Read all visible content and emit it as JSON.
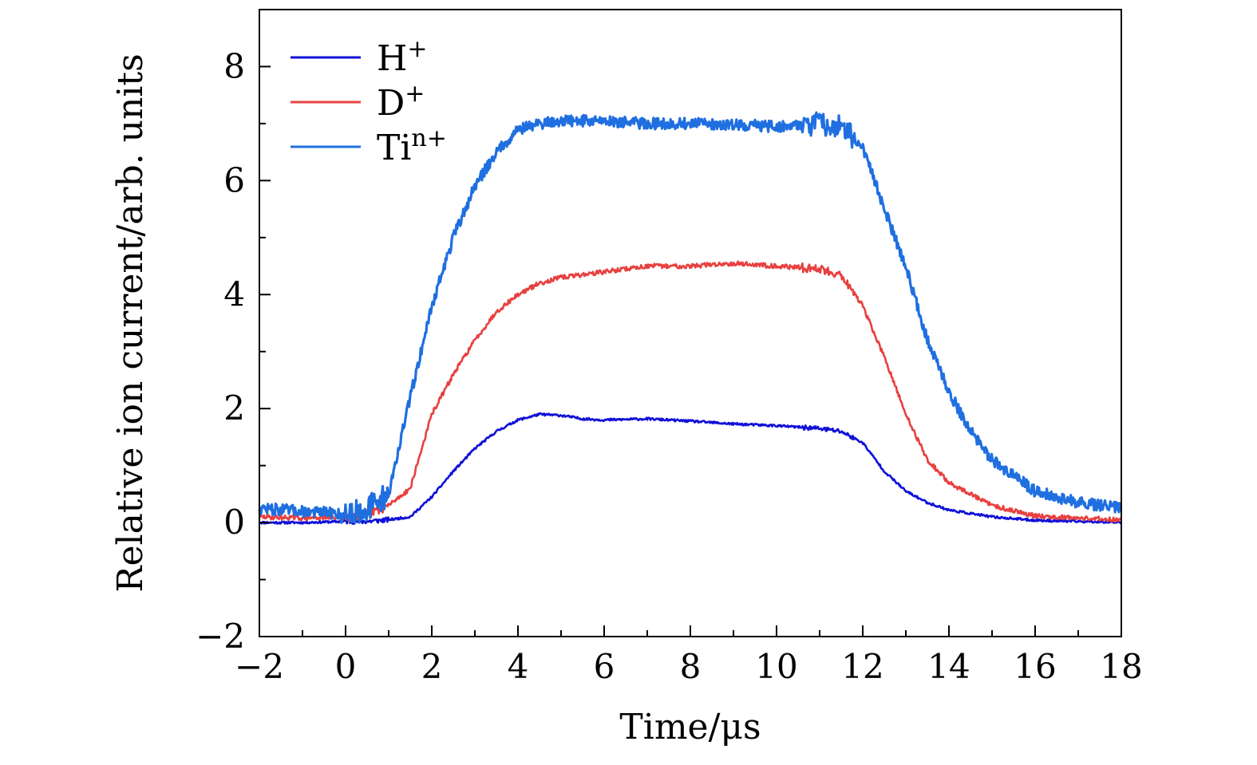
{
  "chart_data": {
    "type": "line",
    "title": "",
    "xlabel": "Time/μs",
    "ylabel": "Relative ion current/arb. units",
    "xlim": [
      -2,
      18
    ],
    "ylim": [
      -2,
      9
    ],
    "x_ticks": [
      -2,
      0,
      2,
      4,
      6,
      8,
      10,
      12,
      14,
      16,
      18
    ],
    "x_tick_labels": [
      "−2",
      "0",
      "2",
      "4",
      "6",
      "8",
      "10",
      "12",
      "14",
      "16",
      "18"
    ],
    "y_ticks": [
      -2,
      0,
      2,
      4,
      6,
      8
    ],
    "y_tick_labels": [
      "−2",
      "0",
      "2",
      "4",
      "6",
      "8"
    ],
    "grid": false,
    "legend_position": "top-left",
    "series": [
      {
        "name_base": "H",
        "name_sup": "+",
        "color": "#1010d8",
        "x": [
          -2,
          -1,
          0,
          0.5,
          1,
          1.5,
          2,
          2.5,
          3,
          3.5,
          4,
          4.5,
          5,
          5.5,
          6,
          7,
          8,
          9,
          10,
          11,
          11.5,
          12,
          12.5,
          13,
          13.5,
          14,
          15,
          16,
          17,
          18
        ],
        "y": [
          0.0,
          0.0,
          0.02,
          0.02,
          0.05,
          0.1,
          0.45,
          0.9,
          1.3,
          1.6,
          1.8,
          1.9,
          1.88,
          1.82,
          1.8,
          1.82,
          1.78,
          1.73,
          1.7,
          1.65,
          1.6,
          1.4,
          0.9,
          0.55,
          0.35,
          0.22,
          0.1,
          0.04,
          0.02,
          0.01
        ],
        "noise": 0.02
      },
      {
        "name_base": "D",
        "name_sup": "+",
        "color": "#e84040",
        "x": [
          -2,
          -1,
          0,
          0.5,
          1,
          1.5,
          2,
          2.5,
          3,
          3.5,
          4,
          4.5,
          5,
          6,
          7,
          8,
          9,
          10,
          11,
          11.5,
          12,
          12.5,
          13,
          13.5,
          14,
          15,
          16,
          17,
          18
        ],
        "y": [
          0.1,
          0.08,
          0.1,
          0.15,
          0.3,
          0.6,
          1.9,
          2.6,
          3.2,
          3.7,
          4.0,
          4.2,
          4.3,
          4.4,
          4.5,
          4.5,
          4.55,
          4.5,
          4.45,
          4.35,
          3.8,
          2.9,
          1.9,
          1.1,
          0.7,
          0.3,
          0.12,
          0.08,
          0.05
        ],
        "noise": 0.04
      },
      {
        "name_base": "Ti",
        "name_sup": "n+",
        "color": "#1f6fe0",
        "x": [
          -2,
          -1,
          0,
          0.5,
          1,
          1.5,
          2,
          2.5,
          3,
          3.5,
          4,
          4.5,
          5,
          6,
          7,
          8,
          9,
          10,
          11,
          11.5,
          12,
          12.5,
          13,
          13.5,
          14,
          14.5,
          15,
          16,
          17,
          18
        ],
        "y": [
          0.25,
          0.2,
          0.15,
          0.25,
          0.5,
          2.2,
          3.8,
          5.0,
          5.9,
          6.5,
          6.9,
          7.0,
          7.05,
          7.05,
          7.0,
          7.0,
          6.98,
          6.95,
          7.0,
          6.95,
          6.6,
          5.5,
          4.5,
          3.2,
          2.3,
          1.6,
          1.1,
          0.55,
          0.35,
          0.25
        ],
        "noise": 0.1
      }
    ]
  }
}
